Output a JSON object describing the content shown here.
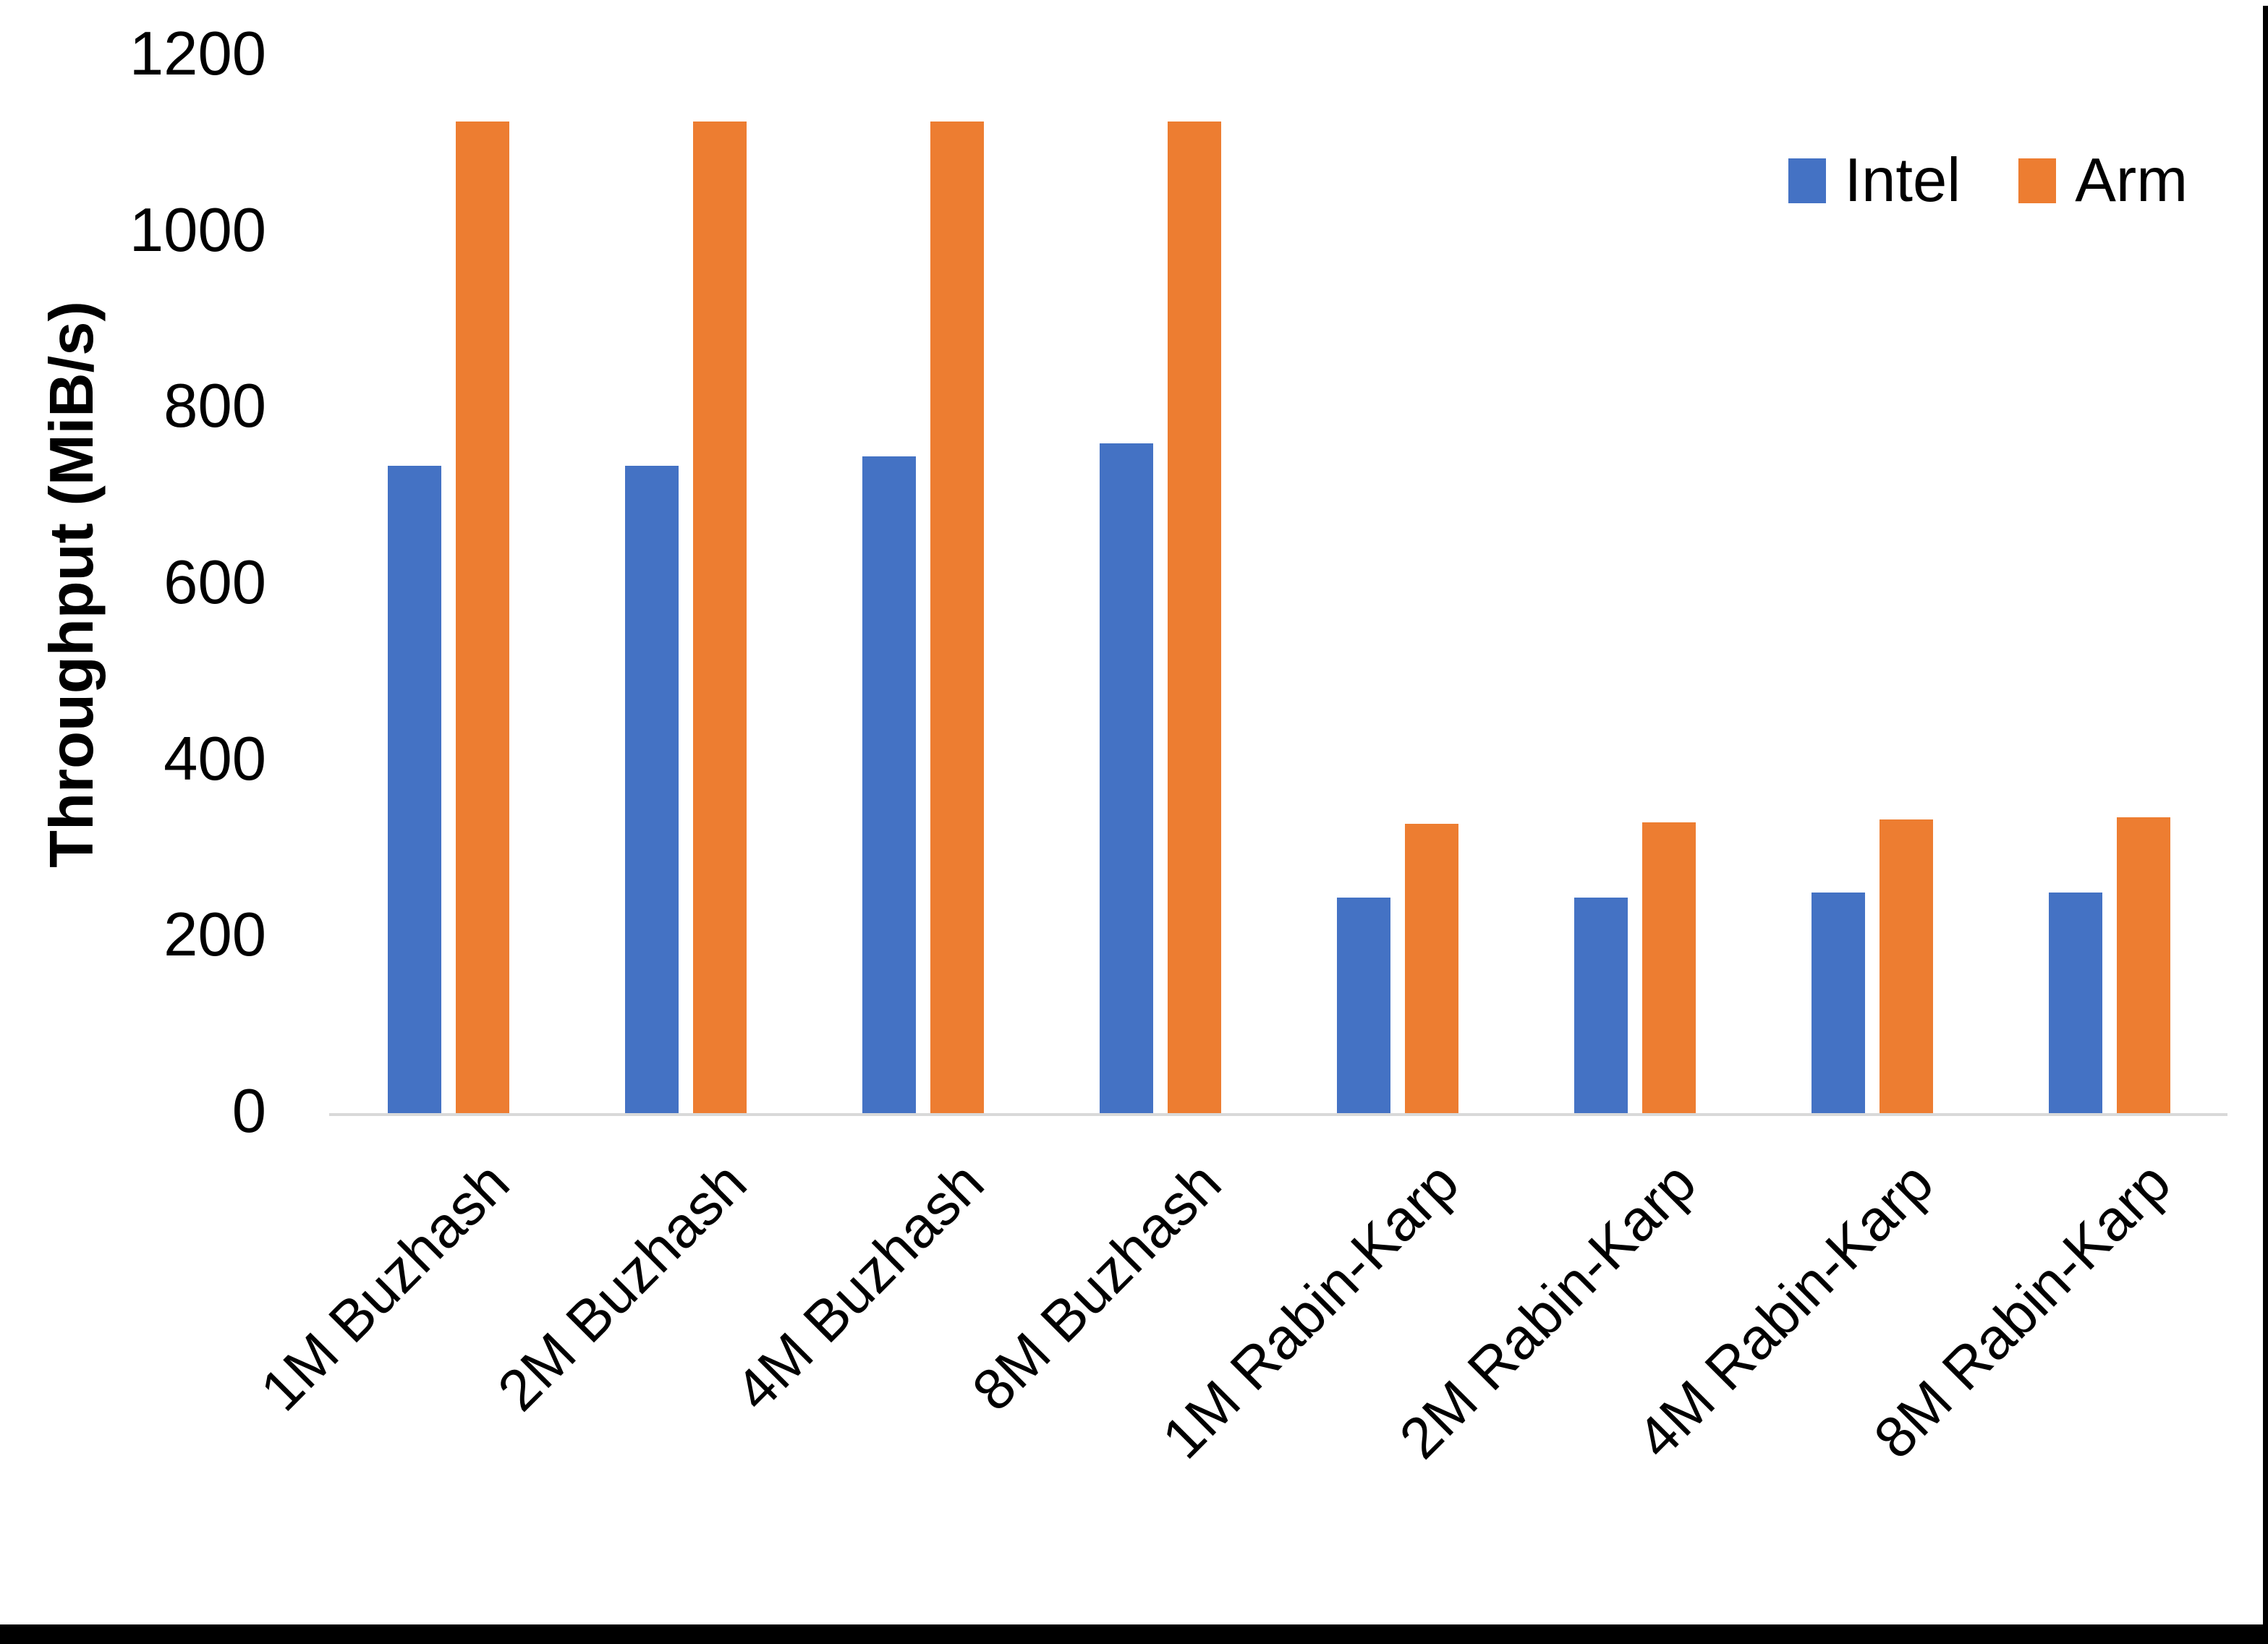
{
  "chart_data": {
    "type": "bar",
    "title": "",
    "xlabel": "",
    "ylabel": "Throughput (MiB/s)",
    "ylim": [
      0,
      1200
    ],
    "yticks": [
      0,
      200,
      400,
      600,
      800,
      1000,
      1200
    ],
    "grid": false,
    "legend_position": "top-right",
    "categories": [
      "1M Buzhash",
      "2M Buzhash",
      "4M Buzhash",
      "8M Buzhash",
      "1M Rabin-Karp",
      "2M Rabin-Karp",
      "4M Rabin-Karp",
      "8M Rabin-Karp"
    ],
    "series": [
      {
        "name": "Intel",
        "color": "#4472C4",
        "values": [
          735,
          735,
          745,
          760,
          245,
          245,
          250,
          250
        ]
      },
      {
        "name": "Arm",
        "color": "#ED7D31",
        "values": [
          1125,
          1125,
          1125,
          1125,
          328,
          330,
          333,
          336
        ]
      }
    ],
    "axis_line_color": "#D9D9D9",
    "text_color": "#000000"
  }
}
